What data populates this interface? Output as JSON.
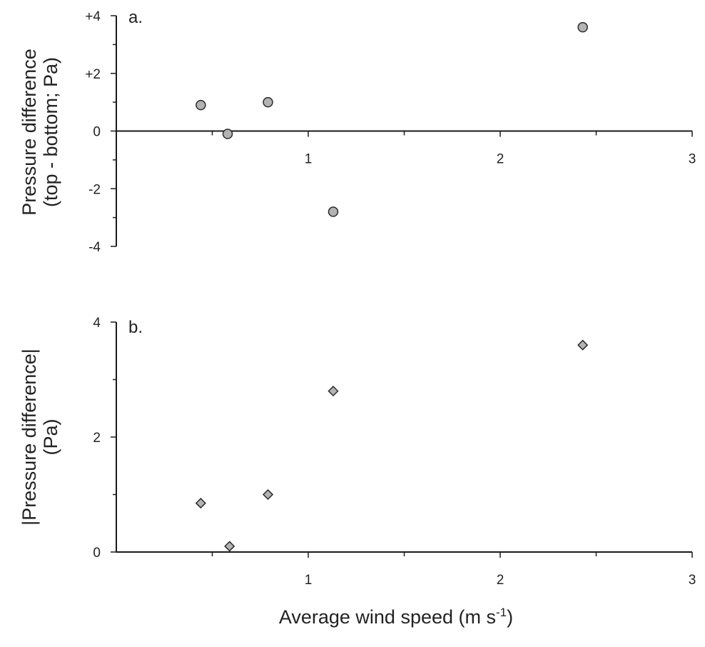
{
  "chart_data": [
    {
      "type": "scatter",
      "panel_label": "a.",
      "ylabel_line1": "Pressure difference",
      "ylabel_line2": "(top - bottom; Pa)",
      "xlabel": "",
      "xlim": [
        0,
        3
      ],
      "ylim": [
        -4,
        4
      ],
      "x_ticks": [
        1,
        2,
        3
      ],
      "x_tick_labels": [
        "1",
        "2",
        "3"
      ],
      "y_ticks": [
        4,
        2,
        0,
        -2,
        -4
      ],
      "y_tick_labels": [
        "+4",
        "+2",
        "0",
        "-2",
        "-4"
      ],
      "marker": "circle",
      "marker_color": "#b3b3b3",
      "x": [
        0.44,
        0.58,
        0.79,
        1.13,
        2.43
      ],
      "y": [
        0.9,
        -0.1,
        1.0,
        -2.8,
        3.6
      ]
    },
    {
      "type": "scatter",
      "panel_label": "b.",
      "ylabel_line1": "|Pressure difference|",
      "ylabel_line2": "(Pa)",
      "xlabel": "Average wind speed (m s",
      "xlabel_sup": "-1",
      "xlabel_end": ")",
      "xlim": [
        0,
        3
      ],
      "ylim": [
        0,
        4
      ],
      "x_ticks": [
        1,
        2,
        3
      ],
      "x_tick_labels": [
        "1",
        "2",
        "3"
      ],
      "y_ticks": [
        4,
        2,
        0
      ],
      "y_tick_labels": [
        "4",
        "2",
        "0"
      ],
      "marker": "diamond",
      "marker_color": "#b3b3b3",
      "x": [
        0.44,
        0.59,
        0.79,
        1.13,
        2.43
      ],
      "y": [
        0.85,
        0.1,
        1.0,
        2.8,
        3.6
      ]
    }
  ]
}
